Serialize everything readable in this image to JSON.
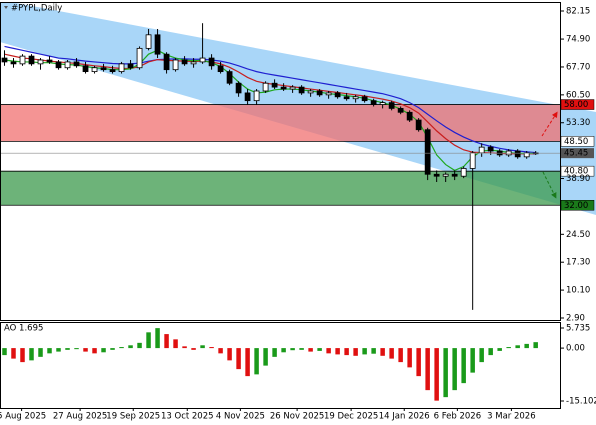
{
  "chart_data": [
    {
      "type": "candlestick",
      "title": "#PYPL,Daily",
      "xlim": [
        -0.5,
        61.7
      ],
      "ylim": [
        2.38,
        84.47
      ],
      "xticks": [
        {
          "value": 1.9,
          "label": "5 Aug 2025"
        },
        {
          "value": 8.4,
          "label": "27 Aug 2025"
        },
        {
          "value": 14.3,
          "label": "19 Sep 2025"
        },
        {
          "value": 20.3,
          "label": "13 Oct 2025"
        },
        {
          "value": 26.2,
          "label": "4 Nov 2025"
        },
        {
          "value": 32.5,
          "label": "26 Nov 2025"
        },
        {
          "value": 38.5,
          "label": "19 Dec 2025"
        },
        {
          "value": 44.4,
          "label": "14 Jan 2026"
        },
        {
          "value": 50.3,
          "label": "6 Feb 2026"
        },
        {
          "value": 56.3,
          "label": "3 Mar 2026"
        }
      ],
      "yticks": [
        82.15,
        {
          "value": 74.9,
          "label": "74.90"
        },
        {
          "value": 67.7,
          "label": "67.70"
        },
        {
          "value": 60.5,
          "label": "60.50"
        },
        {
          "value": 53.3,
          "label": "53.30"
        },
        {
          "value": 38.9,
          "label": "38.90"
        },
        {
          "value": 24.5,
          "label": "24.50"
        },
        {
          "value": 17.3,
          "label": "17.30"
        },
        {
          "value": 10.1,
          "label": "10.10"
        },
        {
          "value": 2.9,
          "label": "2.90"
        }
      ],
      "candles": [
        [
          70,
          72,
          68,
          69
        ],
        [
          69,
          70,
          67.5,
          68.5
        ],
        [
          68.5,
          71,
          68,
          70.5
        ],
        [
          70.5,
          71,
          68,
          68.5
        ],
        [
          68.5,
          70,
          67,
          69.5
        ],
        [
          69.5,
          70.5,
          68.5,
          69
        ],
        [
          69,
          69.5,
          67,
          67.5
        ],
        [
          67.5,
          69.5,
          67,
          69
        ],
        [
          69,
          70,
          67.5,
          68
        ],
        [
          68,
          69,
          66,
          66.5
        ],
        [
          66.5,
          68,
          66,
          67.5
        ],
        [
          67.5,
          68.5,
          66.5,
          67
        ],
        [
          67,
          68,
          66,
          66.5
        ],
        [
          66.5,
          69,
          66,
          68.5
        ],
        [
          68.5,
          69.5,
          67,
          67.5
        ],
        [
          67.5,
          73,
          67,
          72.5
        ],
        [
          72.5,
          77.5,
          72,
          76
        ],
        [
          76,
          77.5,
          70,
          71
        ],
        [
          71,
          71.5,
          66,
          67
        ],
        [
          67,
          70,
          66.5,
          69.5
        ],
        [
          69.5,
          70.5,
          68,
          68.5
        ],
        [
          68.5,
          70,
          67.5,
          69
        ],
        [
          69,
          79,
          68.5,
          70
        ],
        [
          70,
          71,
          67,
          68
        ],
        [
          68,
          69,
          66,
          66.5
        ],
        [
          66.5,
          67,
          63,
          63.5
        ],
        [
          63.5,
          64,
          60,
          61
        ],
        [
          61,
          62,
          58,
          59
        ],
        [
          59,
          62,
          58,
          61.5
        ],
        [
          61.5,
          64,
          61,
          63.5
        ],
        [
          63.5,
          64.5,
          62,
          62.5
        ],
        [
          62.5,
          63.5,
          61.5,
          62
        ],
        [
          62,
          63,
          61,
          62.5
        ],
        [
          62.5,
          63,
          60.5,
          61
        ],
        [
          61,
          62,
          60,
          61.5
        ],
        [
          61.5,
          62,
          60,
          60.5
        ],
        [
          60.5,
          61.5,
          59.5,
          61
        ],
        [
          61,
          61.5,
          59.5,
          60
        ],
        [
          60,
          61,
          59,
          59.5
        ],
        [
          59.5,
          60.5,
          58.5,
          60
        ],
        [
          60,
          60.5,
          58.5,
          59
        ],
        [
          59,
          59.5,
          57.5,
          58
        ],
        [
          58,
          59,
          57,
          58.5
        ],
        [
          58.5,
          59,
          56.5,
          57
        ],
        [
          57,
          57.5,
          55.5,
          56
        ],
        [
          56,
          56.5,
          53.5,
          54
        ],
        [
          54,
          54.5,
          51,
          51.5
        ],
        [
          51.5,
          52,
          38.5,
          40
        ],
        [
          40,
          41,
          38,
          39.5
        ],
        [
          39.5,
          40.5,
          38,
          40
        ],
        [
          40,
          41,
          38.5,
          39.5
        ],
        [
          39.5,
          42,
          39,
          41.5
        ],
        [
          41.5,
          46,
          5,
          45.5
        ],
        [
          45.5,
          48,
          44.5,
          47
        ],
        [
          47,
          47.5,
          45,
          46
        ],
        [
          46,
          46.5,
          44.5,
          45
        ],
        [
          45,
          46.5,
          44.5,
          46
        ],
        [
          46,
          46.5,
          44,
          44.5
        ],
        [
          44.5,
          46,
          44,
          45.5
        ],
        [
          45.5,
          46,
          45,
          45.45
        ]
      ],
      "series": [
        {
          "color": "#1f1fd0",
          "values": [
            73,
            72.5,
            72,
            71.5,
            71,
            70.5,
            70,
            69.8,
            69.5,
            69.2,
            69,
            68.8,
            68.6,
            68.5,
            68.5,
            68.7,
            69.2,
            69.6,
            69.7,
            69.8,
            69.8,
            69.7,
            69.7,
            69.5,
            69.2,
            68.7,
            68,
            67.2,
            66.5,
            66,
            65.6,
            65.2,
            64.8,
            64.4,
            64,
            63.6,
            63.2,
            62.8,
            62.4,
            62,
            61.6,
            61.2,
            60.8,
            60.2,
            59.5,
            58.5,
            57.2,
            55.5,
            53.8,
            52.2,
            50.8,
            49.6,
            48.6,
            47.8,
            47.2,
            46.7,
            46.3,
            46,
            45.8,
            45.6
          ]
        },
        {
          "color": "#c81e1e",
          "values": [
            71,
            70.5,
            70,
            69.8,
            69.5,
            69.2,
            69,
            68.8,
            68.6,
            68.3,
            68,
            67.8,
            67.5,
            67.3,
            67.3,
            67.8,
            69,
            69.6,
            69.4,
            69.3,
            69.2,
            69.1,
            69.2,
            69,
            68.5,
            67.6,
            66.4,
            65,
            64,
            63.5,
            63.2,
            62.9,
            62.6,
            62.3,
            62,
            61.7,
            61.4,
            61.1,
            60.8,
            60.5,
            60.2,
            59.8,
            59.4,
            58.9,
            58.2,
            57.2,
            55.8,
            53.5,
            51.2,
            49.2,
            47.5,
            46.3,
            45.7,
            45.6,
            45.5,
            45.4,
            45.3,
            45.3,
            45.3,
            45.3
          ]
        },
        {
          "color": "#1fa81f",
          "values": [
            69.5,
            69.2,
            69,
            69,
            68.8,
            68.8,
            68.5,
            68.3,
            68.2,
            67.8,
            67.5,
            67.3,
            67,
            67,
            67.2,
            68.5,
            71,
            72,
            70.8,
            70,
            69.5,
            69.3,
            69.4,
            68.8,
            67.8,
            66,
            63.8,
            62,
            61,
            61.2,
            61.8,
            62,
            62,
            61.8,
            61.5,
            61.2,
            60.8,
            60.6,
            60.3,
            60,
            59.6,
            59,
            58.5,
            57.8,
            56.8,
            55.5,
            53.5,
            49.5,
            45,
            42.5,
            41,
            42,
            44.5,
            46,
            46.2,
            46,
            45.6,
            45.4,
            45.4,
            45.4
          ]
        }
      ],
      "zones": [
        {
          "color": "#f07070",
          "top": {
            "value": 58,
            "label": "58.00"
          },
          "bottom": {
            "value": 48.5,
            "label": "48.50"
          }
        },
        {
          "color": "#3c9a4c",
          "top": {
            "value": 40.8,
            "label": "40.80"
          },
          "bottom": {
            "value": 32,
            "label": "32.00"
          }
        }
      ],
      "last_price": 45.45
    },
    {
      "type": "bar",
      "title": "AO 1.695",
      "xlim": [
        -0.5,
        61.7
      ],
      "ylim": [
        -17.1,
        7.45
      ],
      "yticks": [
        5.735,
        {
          "value": 0,
          "label": "0.00"
        },
        -15.102
      ],
      "up_color": "#1a9a1a",
      "down_color": "#e01010",
      "values": [
        -2,
        -3,
        -4,
        -3.5,
        -2.5,
        -1.5,
        -1,
        -0.5,
        -0.3,
        -1,
        -1.5,
        -1.2,
        -0.5,
        0.3,
        0.8,
        1.5,
        4.5,
        5.7,
        4,
        2.5,
        0.5,
        -0.5,
        0.8,
        0.3,
        -1.5,
        -3.5,
        -6,
        -8,
        -7.5,
        -5,
        -2.5,
        -1.2,
        -0.6,
        -0.5,
        -1,
        -0.8,
        -1.5,
        -1.8,
        -2,
        -2.2,
        -1.8,
        -1.6,
        -2.2,
        -3,
        -4,
        -5.5,
        -8,
        -12,
        -15,
        -14,
        -12,
        -10,
        -7,
        -4,
        -2,
        -0.8,
        0.3,
        0.8,
        1.2,
        1.695
      ]
    }
  ]
}
